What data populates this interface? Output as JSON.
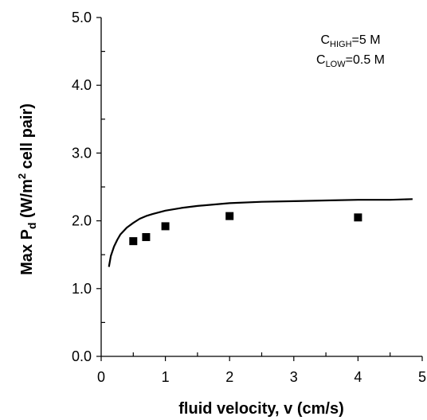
{
  "chart_data": {
    "type": "scatter",
    "title": "",
    "xlabel": "fluid velocity, v (cm/s)",
    "ylabel": {
      "prefix": "Max P",
      "sub": "d",
      "mid": " (W/m",
      "sup": "2",
      "suffix": " cell pair)"
    },
    "xlim": [
      0,
      5
    ],
    "ylim": [
      0,
      5
    ],
    "x_ticks": [
      "0",
      "1",
      "2",
      "3",
      "4",
      "5"
    ],
    "y_ticks": [
      "0.0",
      "1.0",
      "2.0",
      "3.0",
      "4.0",
      "5.0"
    ],
    "grid": false,
    "annotations": [
      {
        "main": "C",
        "sub": "HIGH",
        "rest": "=5 M"
      },
      {
        "main": "C",
        "sub": "LOW",
        "rest": "=0.5 M"
      }
    ],
    "series": [
      {
        "kind": "points",
        "marker": "square",
        "color": "#000000",
        "x": [
          0.5,
          0.7,
          1.0,
          2.0,
          4.0
        ],
        "y": [
          1.7,
          1.76,
          1.92,
          2.07,
          2.05
        ]
      },
      {
        "kind": "line",
        "color": "#000000",
        "x": [
          0.12,
          0.15,
          0.2,
          0.25,
          0.3,
          0.4,
          0.5,
          0.6,
          0.7,
          0.8,
          1.0,
          1.25,
          1.5,
          2.0,
          2.5,
          3.0,
          3.5,
          4.0,
          4.5,
          4.85
        ],
        "y": [
          1.32,
          1.48,
          1.62,
          1.72,
          1.8,
          1.9,
          1.97,
          2.03,
          2.07,
          2.1,
          2.15,
          2.19,
          2.22,
          2.26,
          2.28,
          2.29,
          2.3,
          2.31,
          2.31,
          2.32
        ]
      }
    ]
  }
}
